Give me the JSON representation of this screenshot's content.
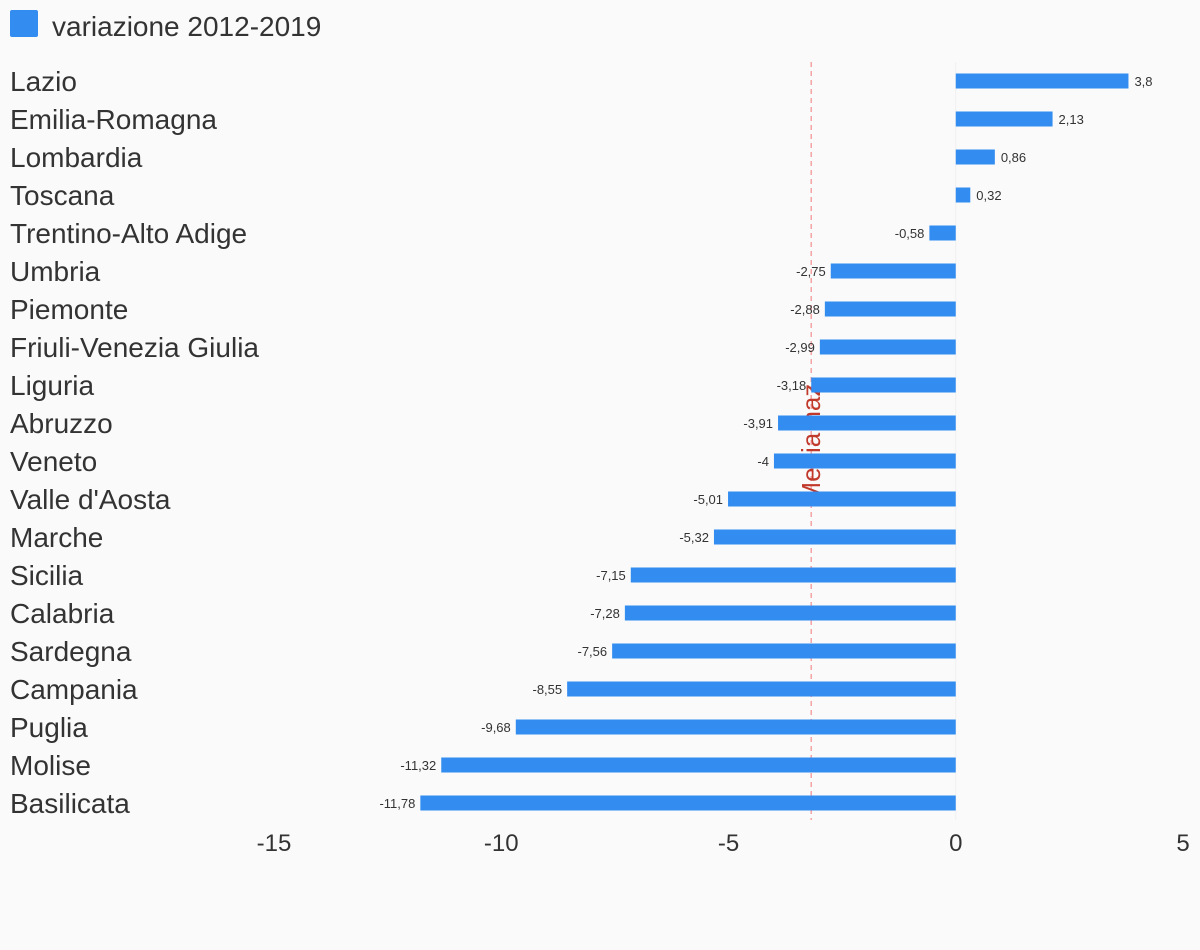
{
  "chart_data": {
    "type": "bar",
    "orientation": "horizontal",
    "legend": {
      "entries": [
        {
          "name": "variazione 2012-2019",
          "color": "#338cf0"
        }
      ],
      "placement": "top-left"
    },
    "series": [
      {
        "name": "variazione 2012-2019",
        "color": "#338cf0",
        "values": [
          3.8,
          2.13,
          0.86,
          0.32,
          -0.58,
          -2.75,
          -2.88,
          -2.99,
          -3.18,
          -3.91,
          -4,
          -5.01,
          -5.32,
          -7.15,
          -7.28,
          -7.56,
          -8.55,
          -9.68,
          -11.32,
          -11.78
        ]
      }
    ],
    "categories": [
      "Lazio",
      "Emilia-Romagna",
      "Lombardia",
      "Toscana",
      "Trentino-Alto Adige",
      "Umbria",
      "Piemonte",
      "Friuli-Venezia Giulia",
      "Liguria",
      "Abruzzo",
      "Veneto",
      "Valle d'Aosta",
      "Marche",
      "Sicilia",
      "Calabria",
      "Sardegna",
      "Campania",
      "Puglia",
      "Molise",
      "Basilicata"
    ],
    "data_labels": [
      "3,8",
      "2,13",
      "0,86",
      "0,32",
      "-0,58",
      "-2,75",
      "-2,88",
      "-2,99",
      "-3,18",
      "-3,91",
      "-4",
      "-5,01",
      "-5,32",
      "-7,15",
      "-7,28",
      "-7,56",
      "-8,55",
      "-9,68",
      "-11,32",
      "-11,78"
    ],
    "xlim": [
      -15,
      5
    ],
    "xticks": [
      -15,
      -10,
      -5,
      0,
      5
    ],
    "xtick_labels": [
      "-15",
      "-10",
      "-5",
      "0",
      "5"
    ],
    "reference_line": {
      "value": -3.18,
      "label": "Media naz.",
      "color": "#f4a3a3",
      "label_color": "#c0392b",
      "style": "dashed"
    },
    "grid": false,
    "title": "",
    "xlabel": "",
    "ylabel": ""
  }
}
